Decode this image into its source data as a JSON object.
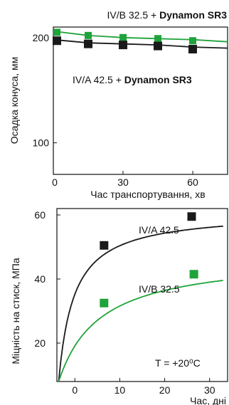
{
  "colors": {
    "black_series": "#1a1a1a",
    "green_series": "#1fa33a",
    "axis": "#111111"
  },
  "chart_data": [
    {
      "type": "line",
      "title": "",
      "xlabel": "Час транспортування, хв",
      "ylabel": "Осадка  конуса, мм",
      "xlim": [
        0,
        75
      ],
      "ylim": [
        70,
        210
      ],
      "xticks": [
        0,
        30,
        60
      ],
      "yticks": [
        100,
        200
      ],
      "xtick_labels": [
        "0",
        "30",
        "60"
      ],
      "ytick_labels": [
        "100",
        "200"
      ],
      "grid": false,
      "series": [
        {
          "name_parts": [
            "IV/B 32.5 + ",
            "Dynamon SR3"
          ],
          "color": "#1fa33a",
          "x": [
            0,
            15,
            30,
            45,
            60
          ],
          "y": [
            205,
            202,
            200,
            199,
            197
          ],
          "line_x": [
            0,
            15,
            30,
            45,
            60,
            75
          ],
          "line_y": [
            206,
            202,
            200,
            199,
            198,
            196
          ]
        },
        {
          "name_parts": [
            "IV/A 42.5 + ",
            "Dynamon SR3"
          ],
          "color": "#1a1a1a",
          "x": [
            0,
            15,
            30,
            45,
            60
          ],
          "y": [
            197,
            194,
            193,
            192,
            189
          ],
          "line_x": [
            0,
            15,
            30,
            45,
            60,
            75
          ],
          "line_y": [
            198,
            195,
            194,
            193,
            191,
            190
          ]
        }
      ]
    },
    {
      "type": "line",
      "title": "",
      "xlabel": "Час, дні",
      "ylabel": "Міцність на стиск, МПа",
      "xlim": [
        -4,
        34
      ],
      "ylim": [
        8,
        62
      ],
      "xticks": [
        0,
        10,
        20,
        30
      ],
      "yticks": [
        20,
        40,
        60
      ],
      "xtick_labels": [
        "0",
        "10",
        "20",
        "30"
      ],
      "ytick_labels": [
        "20",
        "40",
        "60"
      ],
      "grid": false,
      "annotation": "T = +20⁰C",
      "series": [
        {
          "name": "IV/A 42.5",
          "color": "#1a1a1a",
          "x": [
            6.5,
            26
          ],
          "y": [
            50.5,
            59.5
          ],
          "curve": {
            "x0": -3.6,
            "x_end": 33,
            "a": 61,
            "b": 3.4,
            "y0": 8
          }
        },
        {
          "name": "IV/B 32.5",
          "color": "#1fa33a",
          "x": [
            6.5,
            26.5
          ],
          "y": [
            32.5,
            41.5
          ],
          "curve": {
            "x0": -3.6,
            "x_end": 33,
            "a": 47.5,
            "b": 9.2,
            "y0": 8
          }
        }
      ]
    }
  ]
}
